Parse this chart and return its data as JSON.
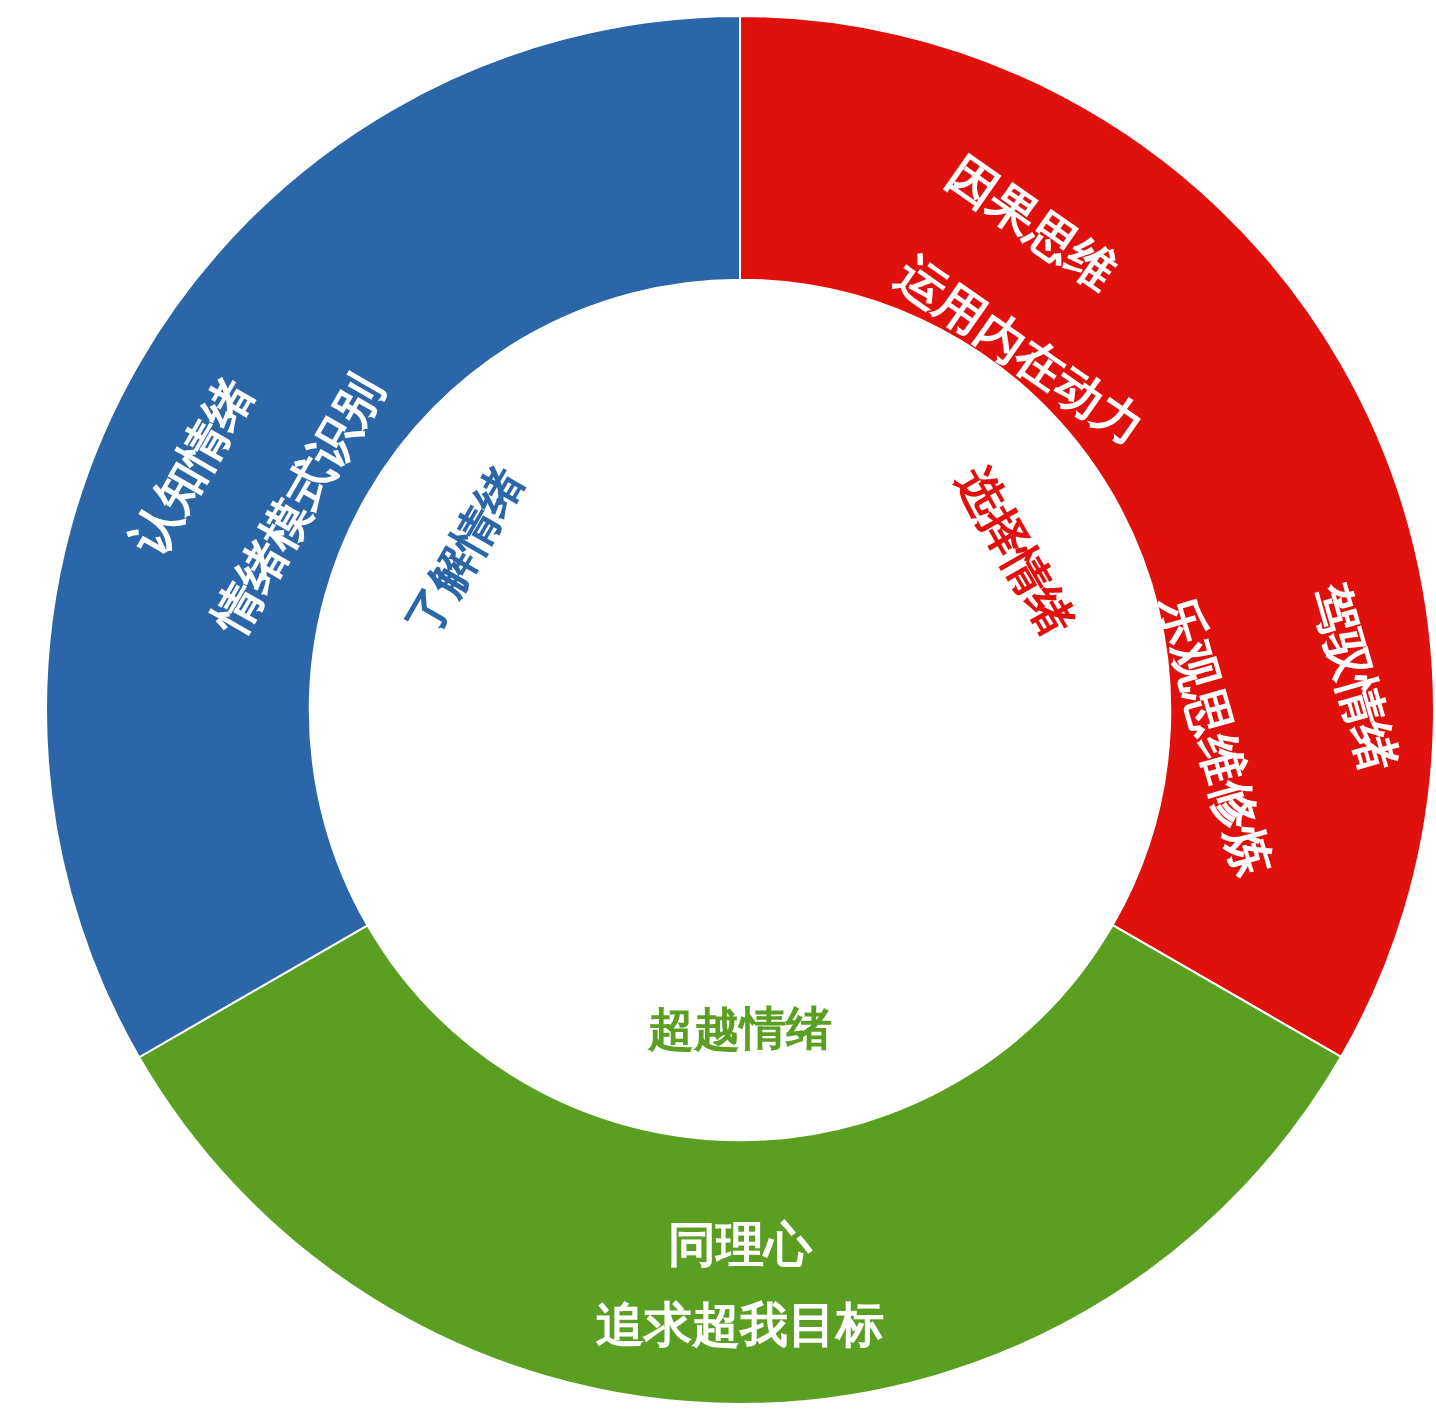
{
  "chart_data": {
    "type": "donut",
    "categories": [
      "选择情绪",
      "超越情绪",
      "了解情绪"
    ],
    "values": [
      33.33,
      33.33,
      33.34
    ],
    "colors": [
      "#e0100c",
      "#5b9f22",
      "#2a66a8"
    ],
    "annotations": [
      {
        "text": "因果思维",
        "x": "选择情绪"
      },
      {
        "text": "运用内在动力",
        "x": "选择情绪"
      },
      {
        "text": "驾驭情绪",
        "x": "选择情绪"
      },
      {
        "text": "乐观思维修炼",
        "x": "选择情绪"
      },
      {
        "text": "认知情绪",
        "x": "了解情绪"
      },
      {
        "text": "情绪模式识别",
        "x": "了解情绪"
      },
      {
        "text": "同理心",
        "x": "超越情绪"
      },
      {
        "text": "追求超我目标",
        "x": "超越情绪"
      }
    ]
  }
}
